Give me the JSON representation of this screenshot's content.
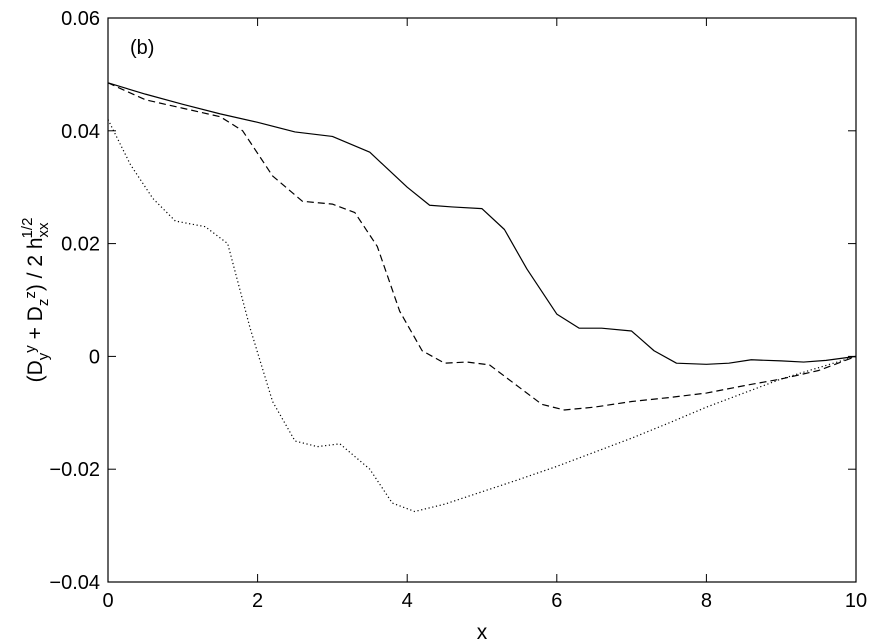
{
  "chart_data": {
    "type": "line",
    "panel_label": "(b)",
    "xlabel": "x",
    "ylabel": {
      "parts": [
        "(D",
        "y",
        "y",
        " + D",
        "z",
        "z",
        ") / 2 h",
        "xx",
        "1/2"
      ]
    },
    "xlim": [
      0,
      10
    ],
    "ylim": [
      -0.04,
      0.06
    ],
    "x_ticks": [
      0,
      2,
      4,
      6,
      8,
      10
    ],
    "x_tick_labels": [
      "0",
      "2",
      "4",
      "6",
      "8",
      "10"
    ],
    "y_ticks": [
      -0.04,
      -0.02,
      0,
      0.02,
      0.04,
      0.06
    ],
    "y_tick_labels": [
      "−0.04",
      "−0.02",
      "0",
      "0.02",
      "0.04",
      "0.06"
    ],
    "grid": false,
    "series": [
      {
        "style": "solid",
        "x": [
          0,
          0.5,
          1.0,
          1.5,
          2.0,
          2.5,
          3.0,
          3.5,
          4.0,
          4.3,
          4.6,
          5.0,
          5.3,
          5.6,
          6.0,
          6.3,
          6.6,
          7.0,
          7.3,
          7.6,
          8.0,
          8.3,
          8.6,
          9.0,
          9.3,
          9.6,
          10.0
        ],
        "y": [
          0.0485,
          0.0465,
          0.0447,
          0.043,
          0.0415,
          0.0398,
          0.039,
          0.0362,
          0.03,
          0.0268,
          0.0265,
          0.0262,
          0.0225,
          0.0155,
          0.0075,
          0.005,
          0.005,
          0.0045,
          0.001,
          -0.0012,
          -0.0014,
          -0.0012,
          -0.0006,
          -0.0008,
          -0.001,
          -0.0007,
          0.0
        ]
      },
      {
        "style": "dashed",
        "x": [
          0,
          0.5,
          1.0,
          1.5,
          1.8,
          2.2,
          2.6,
          3.0,
          3.3,
          3.6,
          3.9,
          4.2,
          4.5,
          4.8,
          5.1,
          5.5,
          5.8,
          6.1,
          6.5,
          7.0,
          7.5,
          8.0,
          8.5,
          9.0,
          9.5,
          10.0
        ],
        "y": [
          0.0485,
          0.0455,
          0.044,
          0.0425,
          0.04,
          0.032,
          0.0275,
          0.027,
          0.0255,
          0.0195,
          0.008,
          0.001,
          -0.0012,
          -0.001,
          -0.0015,
          -0.0055,
          -0.0085,
          -0.0095,
          -0.009,
          -0.008,
          -0.0073,
          -0.0065,
          -0.0052,
          -0.004,
          -0.0025,
          0.0
        ]
      },
      {
        "style": "dotted",
        "x": [
          0,
          0.3,
          0.6,
          0.9,
          1.3,
          1.6,
          1.9,
          2.2,
          2.5,
          2.8,
          3.1,
          3.5,
          3.8,
          4.1,
          4.5,
          5.0,
          5.5,
          6.0,
          6.5,
          7.0,
          7.5,
          8.0,
          8.5,
          9.0,
          9.5,
          10.0
        ],
        "y": [
          0.042,
          0.034,
          0.028,
          0.024,
          0.023,
          0.02,
          0.005,
          -0.008,
          -0.015,
          -0.016,
          -0.0155,
          -0.02,
          -0.026,
          -0.0275,
          -0.0262,
          -0.024,
          -0.0218,
          -0.0195,
          -0.017,
          -0.0145,
          -0.0118,
          -0.009,
          -0.0065,
          -0.004,
          -0.002,
          0.0
        ]
      }
    ]
  }
}
